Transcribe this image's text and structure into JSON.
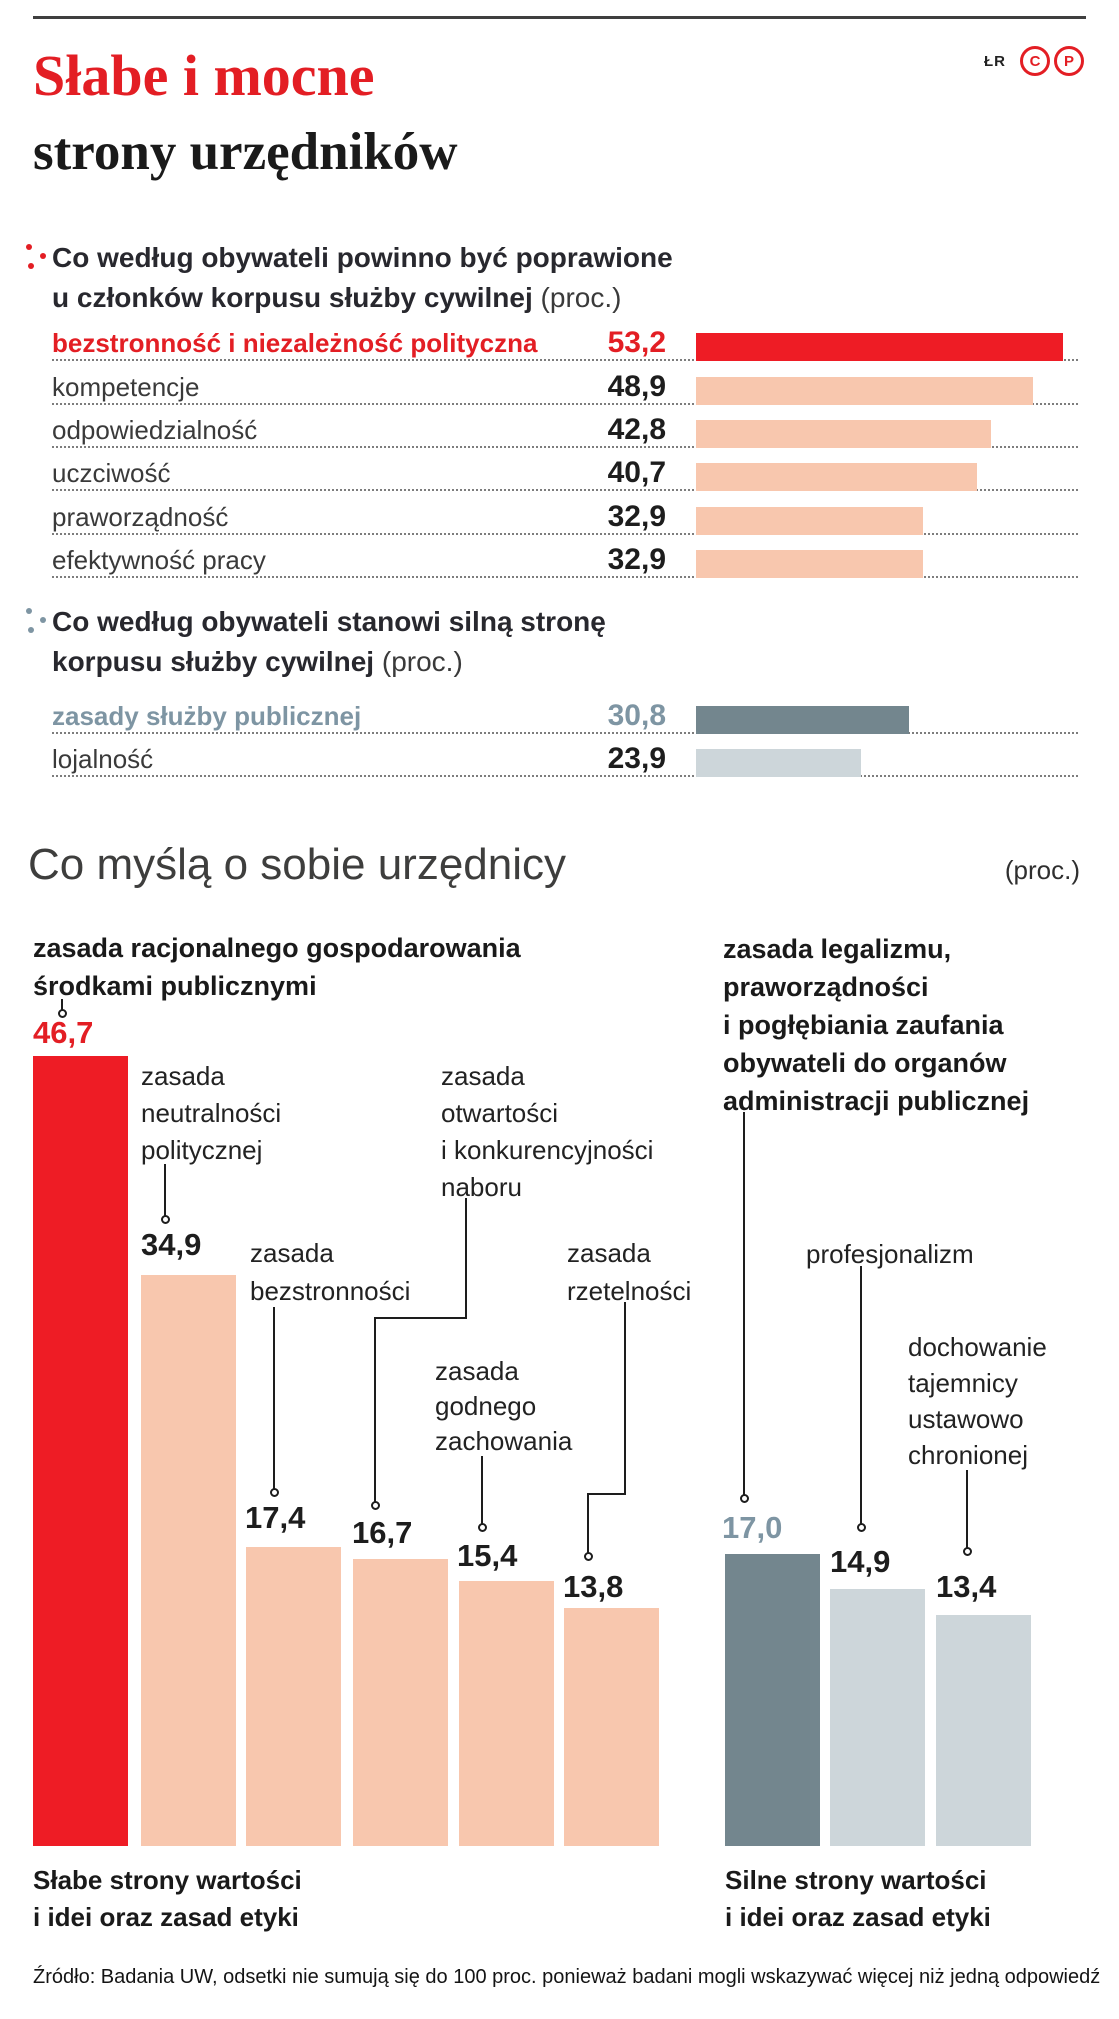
{
  "page": {
    "credit": "ŁR",
    "badge_c": "C",
    "badge_p": "P",
    "title_line1": "Słabe i mocne",
    "title_line2": "strony urzędników",
    "source": "Źródło: Badania UW, odsetki nie sumują się do 100 proc. ponieważ badani mogli wskazywać więcej niż jedną odpowiedź"
  },
  "colors": {
    "title_red": "#e31e24",
    "bar_red": "#ee1c25",
    "salmon": "#f8c7ae",
    "slate": "#73868e",
    "light_slate": "#cdd6da",
    "slate_text": "#7e95a3",
    "dark": "#262626"
  },
  "chart_data": [
    {
      "id": "citizens-improve",
      "type": "bar",
      "orientation": "horizontal",
      "heading_line1": "Co według obywateli powinno być poprawione",
      "heading_line2": "u członków korpusu służby cywilnej",
      "unit": "(proc.)",
      "categories": [
        "bezstronność i niezależność polityczna",
        "kompetencje",
        "odpowiedzialność",
        "uczciwość",
        "praworządność",
        "efektywność pracy"
      ],
      "values": [
        53.2,
        48.9,
        42.8,
        40.7,
        32.9,
        32.9
      ],
      "value_labels": [
        "53,2",
        "48,9",
        "42,8",
        "40,7",
        "32,9",
        "32,9"
      ],
      "highlight_index": 0,
      "xlim": [
        0,
        55
      ],
      "grid": false,
      "legend": false
    },
    {
      "id": "citizens-strengths",
      "type": "bar",
      "orientation": "horizontal",
      "heading_line1": "Co według obywateli stanowi silną stronę",
      "heading_line2": "korpusu służby cywilnej",
      "unit": "(proc.)",
      "categories": [
        "zasady służby publicznej",
        "lojalność"
      ],
      "values": [
        30.8,
        23.9
      ],
      "value_labels": [
        "30,8",
        "23,9"
      ],
      "highlight_index": 0,
      "xlim": [
        0,
        55
      ],
      "grid": false,
      "legend": false
    },
    {
      "id": "officials-self-view",
      "type": "bar",
      "orientation": "vertical",
      "title": "Co myślą o sobie urzędnicy",
      "unit": "(proc.)",
      "bars": [
        {
          "label": "zasada racjonalnego gospodarowania środkami publicznymi",
          "label_lines": [
            "zasada racjonalnego gospodarowania",
            "środkami publicznymi"
          ],
          "value": 46.7,
          "value_label": "46,7"
        },
        {
          "label": "zasada neutralności politycznej",
          "label_lines": [
            "zasada",
            "neutralności",
            "politycznej"
          ],
          "value": 34.9,
          "value_label": "34,9"
        },
        {
          "label": "zasada bezstronności",
          "label_lines": [
            "zasada",
            "bezstronności"
          ],
          "value": 17.4,
          "value_label": "17,4"
        },
        {
          "label": "zasada otwartości i konkurencyjności naboru",
          "label_lines": [
            "zasada",
            "otwartości",
            "i konkurencyjności",
            "naboru"
          ],
          "value": 16.7,
          "value_label": "16,7"
        },
        {
          "label": "zasada godnego zachowania",
          "label_lines": [
            "zasada",
            "godnego",
            "zachowania"
          ],
          "value": 15.4,
          "value_label": "15,4"
        },
        {
          "label": "zasada rzetelności",
          "label_lines": [
            "zasada",
            "rzetelności"
          ],
          "value": 13.8,
          "value_label": "13,8"
        },
        {
          "label": "zasada legalizmu, praworządności i pogłębiania zaufania obywateli do organów administracji publicznej",
          "label_lines": [
            "zasada legalizmu,",
            "praworządności",
            "i pogłębiania zaufania",
            "obywateli do organów",
            "administracji publicznej"
          ],
          "value": 17.0,
          "value_label": "17,0"
        },
        {
          "label": "profesjonalizm",
          "label_lines": [
            "profesjonalizm"
          ],
          "value": 14.9,
          "value_label": "14,9"
        },
        {
          "label": "dochowanie tajemnicy ustawowo chronionej",
          "label_lines": [
            "dochowanie",
            "tajemnicy",
            "ustawowo",
            "chronionej"
          ],
          "value": 13.4,
          "value_label": "13,4"
        }
      ],
      "groups": [
        {
          "label_lines": [
            "Słabe strony wartości",
            "i idei oraz zasad etyki"
          ],
          "bar_indices": [
            0,
            1,
            2,
            3,
            4,
            5
          ]
        },
        {
          "label_lines": [
            "Silne strony wartości",
            "i idei oraz zasad etyki"
          ],
          "bar_indices": [
            6,
            7,
            8
          ]
        }
      ],
      "ylim": [
        0,
        50
      ],
      "grid": false,
      "legend": false
    }
  ]
}
